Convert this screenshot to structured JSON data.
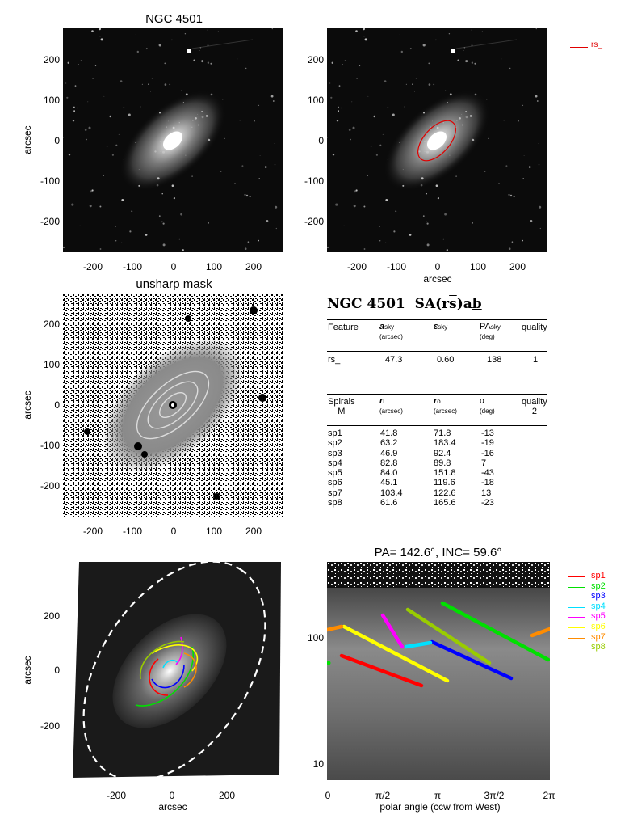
{
  "galaxy": "NGC 4501",
  "panel1": {
    "title": "NGC 4501",
    "ylabel": "arcsec",
    "yticks": [
      "200",
      "100",
      "0",
      "-100",
      "-200"
    ],
    "xticks": [
      "-200",
      "-100",
      "0",
      "100",
      "200"
    ]
  },
  "panel2": {
    "xlabel": "arcsec",
    "xticks": [
      "-200",
      "-100",
      "0",
      "100",
      "200"
    ],
    "yticks": [
      "200",
      "100",
      "0",
      "-100",
      "-200"
    ],
    "legend_label": "rs_"
  },
  "panel3": {
    "title": "unsharp mask",
    "ylabel": "arcsec",
    "yticks": [
      "200",
      "100",
      "0",
      "-100",
      "-200"
    ],
    "xticks": [
      "-200",
      "-100",
      "0",
      "100",
      "200"
    ]
  },
  "table": {
    "title": "NGC 4501  SA(r̅s̅)ab̲",
    "title_plain": "NGC 4501  SA(rs)ab",
    "feature_headers": {
      "feature": "Feature",
      "a": "a",
      "a_sub": "sky",
      "a_unit": "(arcsec)",
      "eps": "ε",
      "eps_sub": "sky",
      "pa": "PA",
      "pa_sub": "sky",
      "pa_unit": "(deg)",
      "quality": "quality"
    },
    "features": [
      {
        "name": "rs_",
        "a": "47.3",
        "eps": "0.60",
        "pa": "138",
        "quality": "1"
      }
    ],
    "spiral_headers": {
      "spirals": "Spirals",
      "m_label": "M",
      "ri": "r",
      "ri_sub": "i",
      "ri_unit": "(arcsec)",
      "ro": "r",
      "ro_sub": "o",
      "ro_unit": "(arcsec)",
      "alpha": "α",
      "alpha_unit": "(deg)",
      "quality": "quality",
      "quality_value": "2"
    },
    "spirals": [
      {
        "name": "sp1",
        "ri": "41.8",
        "ro": "71.8",
        "alpha": "-13"
      },
      {
        "name": "sp2",
        "ri": "63.2",
        "ro": "183.4",
        "alpha": "-19"
      },
      {
        "name": "sp3",
        "ri": "46.9",
        "ro": "92.4",
        "alpha": "-16"
      },
      {
        "name": "sp4",
        "ri": "82.8",
        "ro": "89.8",
        "alpha": "7"
      },
      {
        "name": "sp5",
        "ri": "84.0",
        "ro": "151.8",
        "alpha": "-43"
      },
      {
        "name": "sp6",
        "ri": "45.1",
        "ro": "119.6",
        "alpha": "-18"
      },
      {
        "name": "sp7",
        "ri": "103.4",
        "ro": "122.6",
        "alpha": "13"
      },
      {
        "name": "sp8",
        "ri": "61.6",
        "ro": "165.6",
        "alpha": "-23"
      }
    ]
  },
  "panel5": {
    "xlabel": "arcsec",
    "ylabel": "arcsec",
    "xticks": [
      "-200",
      "0",
      "200"
    ],
    "yticks": [
      "200",
      "0",
      "-200"
    ]
  },
  "panel6": {
    "title": "PA= 142.6°, INC=  59.6°",
    "xlabel": "polar angle (ccw from West)",
    "xticks": [
      "0",
      "π/2",
      "π",
      "3π/2",
      "2π"
    ],
    "yticks": [
      "100",
      "10"
    ],
    "legend": [
      {
        "name": "sp1",
        "color": "#ff0000"
      },
      {
        "name": "sp2",
        "color": "#00e000"
      },
      {
        "name": "sp3",
        "color": "#0000ff"
      },
      {
        "name": "sp4",
        "color": "#00e0ff"
      },
      {
        "name": "sp5",
        "color": "#ff00ff"
      },
      {
        "name": "sp6",
        "color": "#ffff00"
      },
      {
        "name": "sp7",
        "color": "#ff8c00"
      },
      {
        "name": "sp8",
        "color": "#99cc00"
      }
    ]
  }
}
